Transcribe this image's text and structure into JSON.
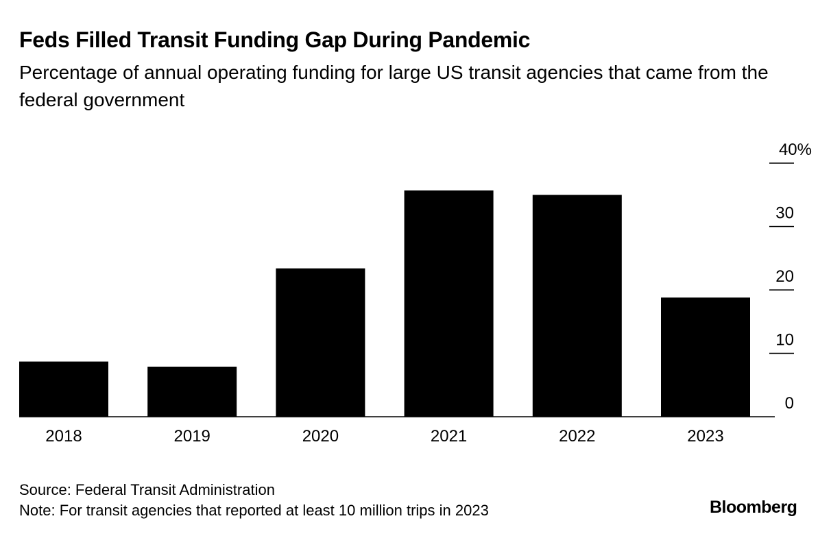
{
  "header": {
    "title": "Feds Filled Transit Funding Gap During Pandemic",
    "subtitle": "Percentage of annual operating funding for large US transit agencies that came from the federal government"
  },
  "footer": {
    "source": "Source: Federal Transit Administration",
    "note": "Note: For transit agencies that reported at least 10 million trips in 2023",
    "logo": "Bloomberg"
  },
  "colors": {
    "bar": "#000000",
    "background": "#ffffff"
  },
  "chart_data": {
    "type": "bar",
    "title": "Feds Filled Transit Funding Gap During Pandemic",
    "subtitle": "Percentage of annual operating funding for large US transit agencies that came from the federal government",
    "categories": [
      "2018",
      "2019",
      "2020",
      "2021",
      "2022",
      "2023"
    ],
    "values": [
      8.7,
      7.9,
      23.4,
      35.7,
      35.0,
      18.8
    ],
    "xlabel": "",
    "ylabel": "",
    "ylim": [
      0,
      40
    ],
    "yticks": [
      0,
      10,
      20,
      30,
      40
    ],
    "ytick_labels": [
      "0",
      "10",
      "20",
      "30",
      "40%"
    ],
    "y_axis_side": "right",
    "grid": false,
    "legend": "none"
  }
}
